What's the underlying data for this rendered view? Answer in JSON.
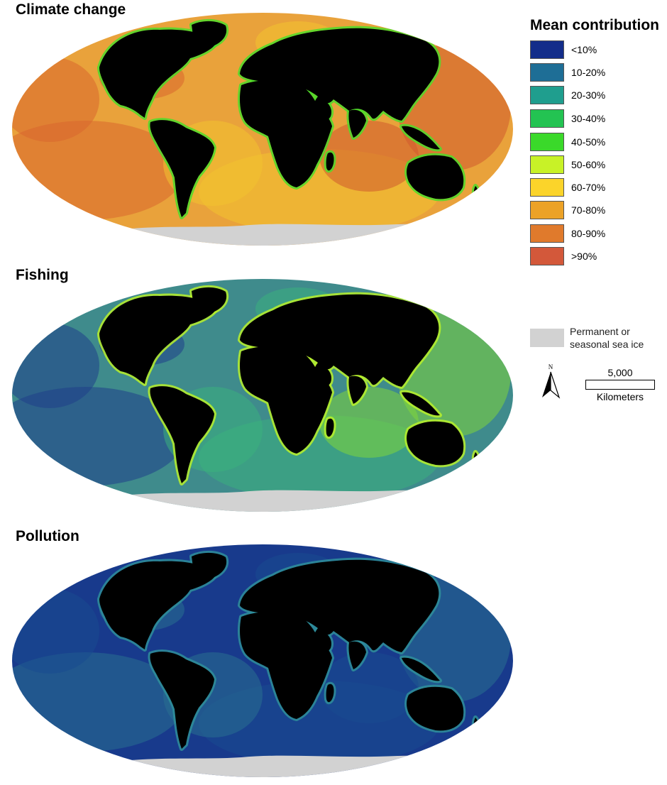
{
  "panels": [
    {
      "title": "Climate change",
      "ocean_fill": "#e9a23b",
      "ocean_accents": [
        "#d9662e",
        "#f2c230",
        "#cf5a2e"
      ],
      "coast_color": "#4ddc2a"
    },
    {
      "title": "Fishing",
      "ocean_fill": "#3f8b8c",
      "ocean_accents": [
        "#1f3f8a",
        "#3bb07d",
        "#7fd63a"
      ],
      "coast_color": "#b8f02a"
    },
    {
      "title": "Pollution",
      "ocean_fill": "#183a8c",
      "ocean_accents": [
        "#2a6f8f",
        "#1a4b90"
      ],
      "coast_color": "#2f8f9a"
    }
  ],
  "legend": {
    "title": "Mean contribution",
    "classes": [
      {
        "label": "<10%",
        "color": "#132d8a"
      },
      {
        "label": "10-20%",
        "color": "#1e6e96"
      },
      {
        "label": "20-30%",
        "color": "#1f9e8e"
      },
      {
        "label": "30-40%",
        "color": "#23c352"
      },
      {
        "label": "40-50%",
        "color": "#3ad92a"
      },
      {
        "label": "50-60%",
        "color": "#c8f227"
      },
      {
        "label": "60-70%",
        "color": "#fbd42a"
      },
      {
        "label": "70-80%",
        "color": "#eca227"
      },
      {
        "label": "80-90%",
        "color": "#e07a2c"
      },
      {
        "label": ">90%",
        "color": "#d3583a"
      }
    ]
  },
  "sea_ice": {
    "label_line1": "Permanent or",
    "label_line2": "seasonal sea ice",
    "color": "#d2d2d2"
  },
  "north_arrow": {
    "letter": "N"
  },
  "scale_bar": {
    "value": "5,000",
    "unit": "Kilometers"
  },
  "land_color": "#000000"
}
